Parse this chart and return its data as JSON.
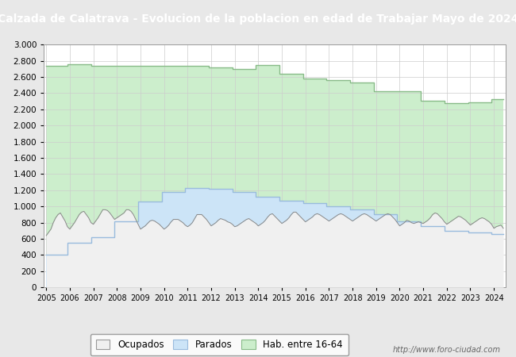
{
  "title": "Calzada de Calatrava - Evolucion de la poblacion en edad de Trabajar Mayo de 2024",
  "title_bg_left": "#4472c4",
  "title_bg_right": "#2255aa",
  "title_color": "white",
  "footer": "http://www.foro-ciudad.com",
  "years_labels": [
    2005,
    2006,
    2007,
    2008,
    2009,
    2010,
    2011,
    2012,
    2013,
    2014,
    2015,
    2016,
    2017,
    2018,
    2019,
    2020,
    2021,
    2022,
    2023,
    2024
  ],
  "hab1664_annual": [
    2740,
    2760,
    2740,
    2740,
    2740,
    2740,
    2740,
    2720,
    2700,
    2750,
    2640,
    2580,
    2560,
    2530,
    2420,
    2420,
    2310,
    2280,
    2290,
    2330
  ],
  "parados_annual": [
    400,
    550,
    620,
    820,
    1060,
    1180,
    1230,
    1220,
    1180,
    1120,
    1070,
    1040,
    1000,
    960,
    900,
    820,
    760,
    700,
    680,
    660
  ],
  "ocupados_monthly_x": [
    2005.0,
    2005.1,
    2005.2,
    2005.3,
    2005.4,
    2005.5,
    2005.6,
    2005.7,
    2005.8,
    2005.9,
    2006.0,
    2006.1,
    2006.2,
    2006.3,
    2006.4,
    2006.5,
    2006.6,
    2006.7,
    2006.8,
    2006.9,
    2007.0,
    2007.1,
    2007.2,
    2007.3,
    2007.4,
    2007.5,
    2007.6,
    2007.7,
    2007.8,
    2007.9,
    2008.0,
    2008.1,
    2008.2,
    2008.3,
    2008.4,
    2008.5,
    2008.6,
    2008.7,
    2008.8,
    2008.9,
    2009.0,
    2009.1,
    2009.2,
    2009.3,
    2009.4,
    2009.5,
    2009.6,
    2009.7,
    2009.8,
    2009.9,
    2010.0,
    2010.1,
    2010.2,
    2010.3,
    2010.4,
    2010.5,
    2010.6,
    2010.7,
    2010.8,
    2010.9,
    2011.0,
    2011.1,
    2011.2,
    2011.3,
    2011.4,
    2011.5,
    2011.6,
    2011.7,
    2011.8,
    2011.9,
    2012.0,
    2012.1,
    2012.2,
    2012.3,
    2012.4,
    2012.5,
    2012.6,
    2012.7,
    2012.8,
    2012.9,
    2013.0,
    2013.1,
    2013.2,
    2013.3,
    2013.4,
    2013.5,
    2013.6,
    2013.7,
    2013.8,
    2013.9,
    2014.0,
    2014.1,
    2014.2,
    2014.3,
    2014.4,
    2014.5,
    2014.6,
    2014.7,
    2014.8,
    2014.9,
    2015.0,
    2015.1,
    2015.2,
    2015.3,
    2015.4,
    2015.5,
    2015.6,
    2015.7,
    2015.8,
    2015.9,
    2016.0,
    2016.1,
    2016.2,
    2016.3,
    2016.4,
    2016.5,
    2016.6,
    2016.7,
    2016.8,
    2016.9,
    2017.0,
    2017.1,
    2017.2,
    2017.3,
    2017.4,
    2017.5,
    2017.6,
    2017.7,
    2017.8,
    2017.9,
    2018.0,
    2018.1,
    2018.2,
    2018.3,
    2018.4,
    2018.5,
    2018.6,
    2018.7,
    2018.8,
    2018.9,
    2019.0,
    2019.1,
    2019.2,
    2019.3,
    2019.4,
    2019.5,
    2019.6,
    2019.7,
    2019.8,
    2019.9,
    2020.0,
    2020.1,
    2020.2,
    2020.3,
    2020.4,
    2020.5,
    2020.6,
    2020.7,
    2020.8,
    2020.9,
    2021.0,
    2021.1,
    2021.2,
    2021.3,
    2021.4,
    2021.5,
    2021.6,
    2021.7,
    2021.8,
    2021.9,
    2022.0,
    2022.1,
    2022.2,
    2022.3,
    2022.4,
    2022.5,
    2022.6,
    2022.7,
    2022.8,
    2022.9,
    2023.0,
    2023.1,
    2023.2,
    2023.3,
    2023.4,
    2023.5,
    2023.6,
    2023.7,
    2023.8,
    2023.9,
    2024.0,
    2024.1,
    2024.2,
    2024.3,
    2024.4
  ],
  "ocupados_monthly_y": [
    640,
    680,
    720,
    800,
    860,
    900,
    920,
    870,
    820,
    750,
    720,
    760,
    800,
    850,
    900,
    930,
    940,
    900,
    860,
    800,
    780,
    820,
    860,
    910,
    960,
    960,
    950,
    920,
    880,
    840,
    860,
    880,
    900,
    920,
    960,
    960,
    940,
    900,
    840,
    780,
    720,
    740,
    760,
    790,
    820,
    830,
    820,
    800,
    780,
    750,
    720,
    740,
    770,
    810,
    840,
    840,
    840,
    820,
    800,
    770,
    750,
    770,
    800,
    850,
    900,
    900,
    900,
    870,
    840,
    800,
    760,
    780,
    800,
    830,
    850,
    840,
    830,
    810,
    800,
    780,
    750,
    760,
    780,
    800,
    820,
    840,
    850,
    830,
    810,
    790,
    760,
    780,
    800,
    830,
    870,
    900,
    910,
    880,
    850,
    820,
    790,
    810,
    830,
    860,
    900,
    930,
    930,
    900,
    870,
    840,
    810,
    830,
    850,
    870,
    900,
    910,
    900,
    880,
    860,
    840,
    820,
    840,
    860,
    880,
    900,
    910,
    900,
    880,
    860,
    840,
    820,
    840,
    860,
    880,
    900,
    910,
    900,
    880,
    860,
    840,
    820,
    840,
    860,
    880,
    900,
    910,
    900,
    870,
    840,
    800,
    760,
    780,
    800,
    830,
    820,
    800,
    790,
    800,
    810,
    800,
    790,
    810,
    830,
    860,
    900,
    920,
    910,
    880,
    850,
    810,
    780,
    800,
    820,
    840,
    860,
    880,
    870,
    850,
    830,
    800,
    770,
    790,
    810,
    830,
    850,
    860,
    850,
    830,
    810,
    780,
    730,
    750,
    760,
    770,
    730
  ],
  "color_hab": "#cceecc",
  "color_parados": "#cce4f7",
  "color_ocupados": "#f0f0f0",
  "color_line_hab": "#88bb88",
  "color_line_parados": "#99bbdd",
  "color_line_ocupados": "#888888",
  "ylim": [
    0,
    3000
  ],
  "yticks": [
    0,
    200,
    400,
    600,
    800,
    1000,
    1200,
    1400,
    1600,
    1800,
    2000,
    2200,
    2400,
    2600,
    2800,
    3000
  ],
  "legend_labels": [
    "Ocupados",
    "Parados",
    "Hab. entre 16-64"
  ],
  "bg_color": "#e8e8e8",
  "plot_bg": "#ffffff",
  "title_fontsize": 10
}
